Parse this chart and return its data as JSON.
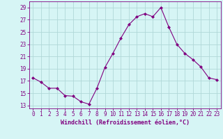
{
  "x": [
    0,
    1,
    2,
    3,
    4,
    5,
    6,
    7,
    8,
    9,
    10,
    11,
    12,
    13,
    14,
    15,
    16,
    17,
    18,
    19,
    20,
    21,
    22,
    23
  ],
  "y": [
    17.5,
    16.8,
    15.8,
    15.8,
    14.6,
    14.5,
    13.6,
    13.2,
    15.8,
    19.2,
    21.5,
    24.0,
    26.2,
    27.5,
    28.0,
    27.5,
    29.0,
    25.8,
    23.0,
    21.5,
    20.5,
    19.3,
    17.5,
    17.2
  ],
  "line_color": "#800080",
  "marker": "D",
  "marker_size": 2.0,
  "bg_color": "#d6f5f5",
  "grid_color": "#b0d8d8",
  "xlabel": "Windchill (Refroidissement éolien,°C)",
  "ylabel_ticks": [
    13,
    15,
    17,
    19,
    21,
    23,
    25,
    27,
    29
  ],
  "xlim": [
    -0.5,
    23.5
  ],
  "ylim": [
    12.5,
    30.0
  ],
  "xtick_labels": [
    "0",
    "1",
    "2",
    "3",
    "4",
    "5",
    "6",
    "7",
    "8",
    "9",
    "10",
    "11",
    "12",
    "13",
    "14",
    "15",
    "16",
    "17",
    "18",
    "19",
    "20",
    "21",
    "22",
    "23"
  ],
  "label_color": "#800080",
  "tick_color": "#800080",
  "xlabel_fontsize": 6.0,
  "tick_fontsize": 5.5
}
